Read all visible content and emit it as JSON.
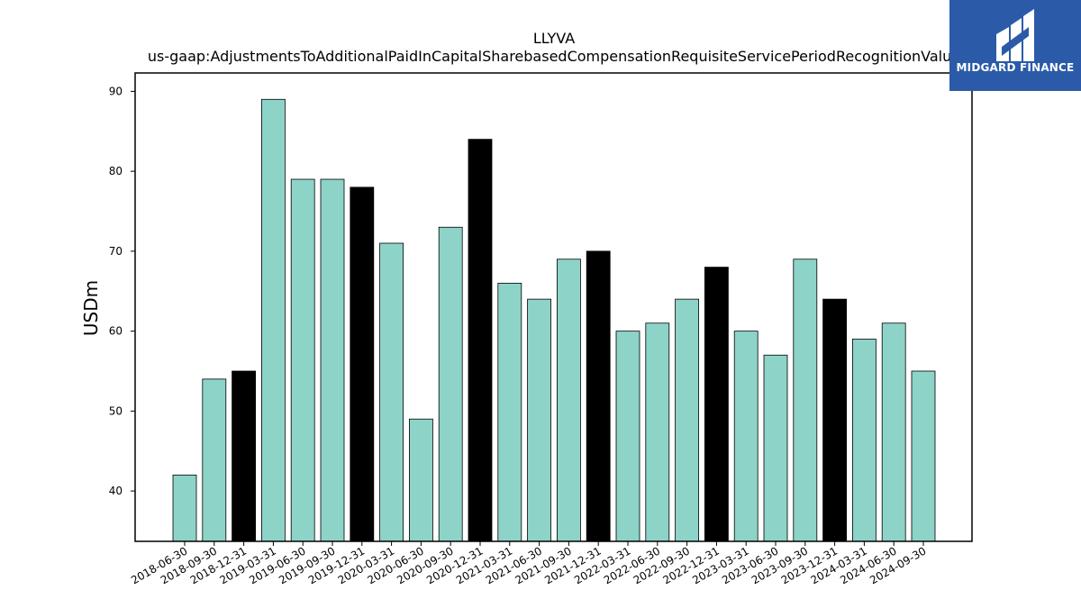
{
  "chart_data": {
    "type": "bar",
    "title": "LLYVA",
    "subtitle": "us-gaap:AdjustmentsToAdditionalPaidInCapitalSharebasedCompensationRequisiteServicePeriodRecognitionValue",
    "xlabel": "",
    "ylabel": "USDm",
    "ylim": [
      33.7,
      92.3
    ],
    "yticks": [
      40,
      50,
      60,
      70,
      80,
      90
    ],
    "grid": false,
    "categories": [
      "2018-06-30",
      "2018-09-30",
      "2018-12-31",
      "2019-03-31",
      "2019-06-30",
      "2019-09-30",
      "2019-12-31",
      "2020-03-31",
      "2020-06-30",
      "2020-09-30",
      "2020-12-31",
      "2021-03-31",
      "2021-06-30",
      "2021-09-30",
      "2021-12-31",
      "2022-03-31",
      "2022-06-30",
      "2022-09-30",
      "2022-12-31",
      "2023-03-31",
      "2023-06-30",
      "2023-09-30",
      "2023-12-31",
      "2024-03-31",
      "2024-06-30",
      "2024-09-30"
    ],
    "values": [
      42,
      54,
      55,
      89,
      79,
      79,
      78,
      71,
      49,
      73,
      84,
      66,
      64,
      69,
      70,
      60,
      61,
      64,
      68,
      60,
      57,
      69,
      64,
      59,
      61,
      55
    ],
    "colors": {
      "quarter": "#8dd3c7",
      "year_end": "#000000",
      "edge": "#000000"
    }
  },
  "logo": {
    "text": "MIDGARD FINANCE",
    "bg": "#2b5ba8"
  }
}
